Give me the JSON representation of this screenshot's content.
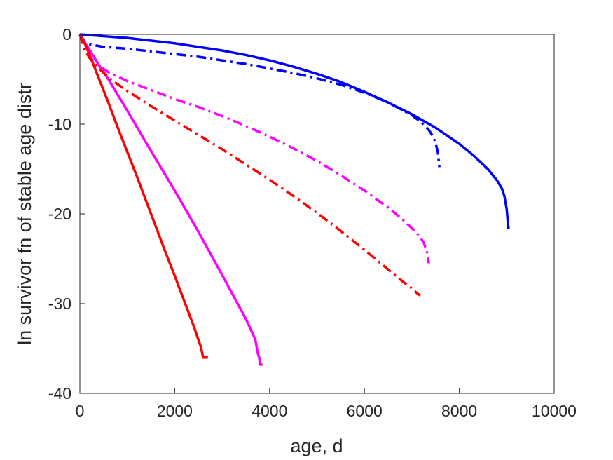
{
  "chart_data": {
    "type": "line",
    "title": "",
    "xlabel": "age, d",
    "ylabel": "ln survivor fn of stable age distr",
    "xlim": [
      0,
      10000
    ],
    "ylim": [
      -40,
      0
    ],
    "xticks": [
      0,
      2000,
      4000,
      6000,
      8000,
      10000
    ],
    "yticks": [
      0,
      -10,
      -20,
      -30,
      -40
    ],
    "xtick_labels": [
      "0",
      "2000",
      "4000",
      "6000",
      "8000",
      "10000"
    ],
    "ytick_labels": [
      "0",
      "-10",
      "-20",
      "-30",
      "-40"
    ],
    "grid": false,
    "legend": "none",
    "series": [
      {
        "color": "#0000ff",
        "style": "solid",
        "x": [
          0,
          500,
          1000,
          1500,
          2000,
          2500,
          3000,
          3500,
          4000,
          4500,
          5000,
          5500,
          6000,
          6500,
          7000,
          7500,
          8000,
          8300,
          8600,
          8800,
          8900,
          8950,
          9000,
          9020,
          9040
        ],
        "y": [
          0,
          -0.2,
          -0.4,
          -0.7,
          -1.0,
          -1.4,
          -1.8,
          -2.3,
          -2.9,
          -3.6,
          -4.4,
          -5.3,
          -6.4,
          -7.6,
          -8.9,
          -10.4,
          -12.2,
          -13.5,
          -15.0,
          -16.3,
          -17.2,
          -18.0,
          -19.5,
          -20.8,
          -21.7
        ]
      },
      {
        "color": "#0000ff",
        "style": "dashdot",
        "x": [
          0,
          100,
          200,
          500,
          1000,
          1500,
          2000,
          2500,
          3000,
          3500,
          4000,
          4500,
          5000,
          5500,
          6000,
          6500,
          7000,
          7200,
          7350,
          7450,
          7500,
          7550,
          7580
        ],
        "y": [
          0,
          -0.8,
          -1.1,
          -1.4,
          -1.6,
          -1.9,
          -2.2,
          -2.5,
          -2.9,
          -3.3,
          -3.8,
          -4.3,
          -4.9,
          -5.6,
          -6.5,
          -7.6,
          -9.0,
          -9.8,
          -10.6,
          -11.4,
          -12.1,
          -13.2,
          -14.8
        ]
      },
      {
        "color": "#ff00ff",
        "style": "solid",
        "x": [
          0,
          100,
          200,
          400,
          600,
          1000,
          1500,
          2000,
          2500,
          3000,
          3500,
          3700,
          3750,
          3780,
          3800,
          3850
        ],
        "y": [
          0,
          -0.9,
          -1.7,
          -3.4,
          -5.0,
          -8.5,
          -13.0,
          -17.4,
          -22.0,
          -26.8,
          -31.7,
          -34.0,
          -35.5,
          -36.0,
          -36.8,
          -36.8
        ]
      },
      {
        "color": "#ff00ff",
        "style": "dashdot",
        "x": [
          0,
          100,
          200,
          400,
          600,
          1000,
          1500,
          2000,
          2500,
          3000,
          3500,
          4000,
          4500,
          5000,
          5500,
          6000,
          6500,
          6800,
          7000,
          7150,
          7250,
          7320,
          7360
        ],
        "y": [
          0,
          -1.5,
          -2.5,
          -3.5,
          -4.2,
          -5.2,
          -6.2,
          -7.2,
          -8.1,
          -9.1,
          -10.2,
          -11.4,
          -12.7,
          -14.1,
          -15.7,
          -17.4,
          -19.3,
          -20.6,
          -21.6,
          -22.4,
          -23.2,
          -24.3,
          -25.5
        ]
      },
      {
        "color": "#ff0000",
        "style": "solid",
        "x": [
          0,
          100,
          200,
          400,
          600,
          800,
          1000,
          1200,
          1400,
          1600,
          1800,
          2000,
          2200,
          2400,
          2550,
          2600,
          2650,
          2700
        ],
        "y": [
          0,
          -1.0,
          -2.2,
          -4.9,
          -7.6,
          -10.4,
          -13.1,
          -15.8,
          -18.6,
          -21.4,
          -24.2,
          -26.9,
          -29.7,
          -32.5,
          -34.8,
          -36.0,
          -36.0,
          -36.0
        ]
      },
      {
        "color": "#ff0000",
        "style": "dashdot",
        "x": [
          0,
          100,
          200,
          400,
          700,
          1000,
          1500,
          2000,
          2500,
          3000,
          3500,
          4000,
          4500,
          5000,
          5500,
          6000,
          6500,
          6800,
          7000,
          7100,
          7150,
          7180
        ],
        "y": [
          0,
          -1.7,
          -2.6,
          -3.8,
          -5.2,
          -6.3,
          -8.0,
          -9.6,
          -11.2,
          -12.8,
          -14.5,
          -16.2,
          -18.0,
          -19.9,
          -21.9,
          -24.0,
          -26.2,
          -27.5,
          -28.3,
          -28.8,
          -29.0,
          -29.1
        ]
      }
    ]
  }
}
